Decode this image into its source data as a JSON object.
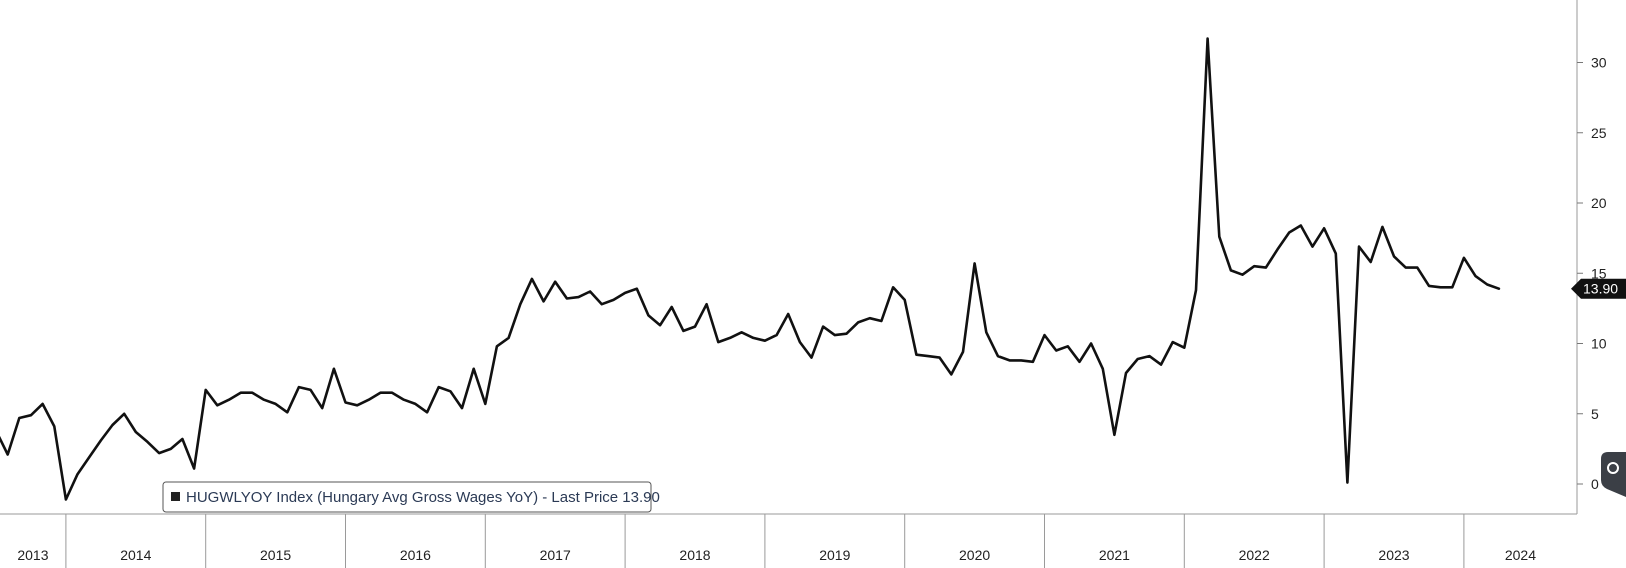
{
  "chart_data": {
    "type": "line",
    "ylim": [
      -2,
      34
    ],
    "yticks": [
      0,
      5,
      10,
      15,
      20,
      25,
      30
    ],
    "year_labels": [
      "2013",
      "2014",
      "2015",
      "2016",
      "2017",
      "2018",
      "2019",
      "2020",
      "2021",
      "2022",
      "2023",
      "2024"
    ],
    "legend": {
      "marker_color": "#222222",
      "text": "HUGWLYOY Index (Hungary Avg Gross Wages YoY) - Last Price 13.90"
    },
    "last_price_label": "13.90",
    "line_color": "#111111",
    "series": [
      {
        "values": [
          3.8,
          2.1,
          4.7,
          4.9,
          5.7,
          4.1,
          -1.1,
          0.7,
          1.9,
          3.1,
          4.2,
          5.0,
          3.7,
          3.0,
          2.2,
          2.5,
          3.2,
          1.1,
          6.7,
          5.6,
          6.0,
          6.5,
          6.5,
          6.0,
          5.7,
          5.1,
          6.9,
          6.7,
          5.4,
          8.2,
          5.8,
          5.6,
          6.0,
          6.5,
          6.5,
          6.0,
          5.7,
          5.1,
          6.9,
          6.6,
          5.4,
          8.2,
          5.7,
          9.8,
          10.4,
          12.8,
          14.6,
          13.0,
          14.4,
          13.2,
          13.3,
          13.7,
          12.8,
          13.1,
          13.6,
          13.9,
          12.0,
          11.3,
          12.6,
          10.9,
          11.2,
          12.8,
          10.1,
          10.4,
          10.8,
          10.4,
          10.2,
          10.6,
          12.1,
          10.1,
          9.0,
          11.2,
          10.6,
          10.7,
          11.5,
          11.8,
          11.6,
          14.0,
          13.1,
          9.2,
          9.1,
          9.0,
          7.8,
          9.4,
          15.7,
          10.8,
          9.1,
          8.8,
          8.8,
          8.7,
          10.6,
          9.5,
          9.8,
          8.7,
          10.0,
          8.2,
          3.5,
          7.9,
          8.9,
          9.1,
          8.5,
          10.1,
          9.7,
          13.8,
          31.7,
          17.6,
          15.2,
          14.9,
          15.5,
          15.4,
          16.7,
          17.9,
          18.4,
          16.9,
          18.2,
          16.4,
          0.1,
          16.9,
          15.8,
          18.3,
          16.2,
          15.4,
          15.4,
          14.1,
          14.0,
          14.0,
          16.1,
          14.8,
          14.2,
          13.9
        ]
      }
    ]
  }
}
